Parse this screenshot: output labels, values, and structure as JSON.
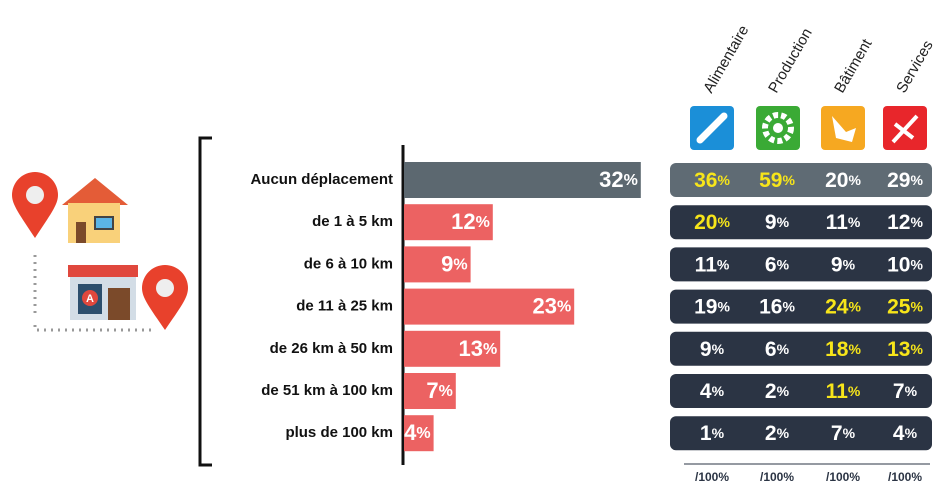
{
  "chart_data": {
    "type": "bar",
    "categories": [
      "Aucun déplacement",
      "de 1 à 5 km",
      "de 6 à 10 km",
      "de 11 à 25 km",
      "de 26 km à 50 km",
      "de 51 km à 100 km",
      "plus de 100 km"
    ],
    "values": [
      32,
      12,
      9,
      23,
      13,
      7,
      4
    ],
    "value_labels": [
      "32%",
      "12%",
      "9%",
      "23%",
      "13%",
      "7%",
      "4%"
    ],
    "colors": [
      "#5c6870",
      "#ec6262",
      "#ec6262",
      "#ec6262",
      "#ec6262",
      "#ec6262",
      "#ec6262"
    ]
  },
  "table": {
    "columns": [
      "Alimentaire",
      "Production",
      "Bâtiment",
      "Services"
    ],
    "column_colors": [
      "#1b8fd8",
      "#3aaa35",
      "#f6a821",
      "#e8262b"
    ],
    "row_colors": [
      "#5f6b74",
      "#2b3444",
      "#2b3444",
      "#2b3444",
      "#2b3444",
      "#2b3444",
      "#2b3444"
    ],
    "highlight_color": "#f7e51a",
    "rows": [
      [
        {
          "label": "36%",
          "highlight": true
        },
        {
          "label": "59%",
          "highlight": true
        },
        {
          "label": "20%",
          "highlight": false
        },
        {
          "label": "29%",
          "highlight": false
        }
      ],
      [
        {
          "label": "20%",
          "highlight": true
        },
        {
          "label": "9%",
          "highlight": false
        },
        {
          "label": "11%",
          "highlight": false
        },
        {
          "label": "12%",
          "highlight": false
        }
      ],
      [
        {
          "label": "11%",
          "highlight": false
        },
        {
          "label": "6%",
          "highlight": false
        },
        {
          "label": "9%",
          "highlight": false
        },
        {
          "label": "10%",
          "highlight": false
        }
      ],
      [
        {
          "label": "19%",
          "highlight": false
        },
        {
          "label": "16%",
          "highlight": false
        },
        {
          "label": "24%",
          "highlight": true
        },
        {
          "label": "25%",
          "highlight": true
        }
      ],
      [
        {
          "label": "9%",
          "highlight": false
        },
        {
          "label": "6%",
          "highlight": false
        },
        {
          "label": "18%",
          "highlight": true
        },
        {
          "label": "13%",
          "highlight": true
        }
      ],
      [
        {
          "label": "4%",
          "highlight": false
        },
        {
          "label": "2%",
          "highlight": false
        },
        {
          "label": "11%",
          "highlight": true
        },
        {
          "label": "7%",
          "highlight": false
        }
      ],
      [
        {
          "label": "1%",
          "highlight": false
        },
        {
          "label": "2%",
          "highlight": false
        },
        {
          "label": "7%",
          "highlight": false
        },
        {
          "label": "4%",
          "highlight": false
        }
      ]
    ],
    "totals": [
      "/100%",
      "/100%",
      "/100%",
      "/100%"
    ]
  }
}
